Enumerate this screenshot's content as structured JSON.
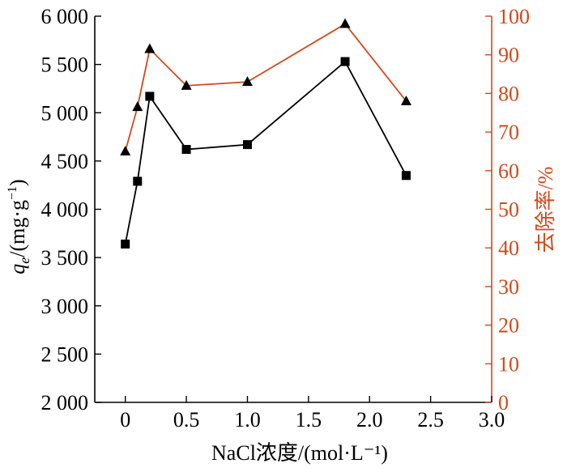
{
  "chart_data": {
    "type": "line",
    "xlabel": "NaCl浓度/(mol·L⁻¹)",
    "ylabel_left": {
      "main": "q",
      "sub": "e",
      "suffix": "/(mg·g",
      "sup": "−1",
      "close": ")"
    },
    "ylabel_right": "去除率/%",
    "x_ticks": [
      "0",
      "0.5",
      "1.0",
      "1.5",
      "2.0",
      "2.5",
      "3.0"
    ],
    "x_tick_values": [
      0,
      0.5,
      1.0,
      1.5,
      2.0,
      2.5,
      3.0
    ],
    "y_left_ticks": [
      "2 000",
      "2 500",
      "3 000",
      "3 500",
      "4 000",
      "4 500",
      "5 000",
      "5 500",
      "6 000"
    ],
    "y_left_tick_values": [
      2000,
      2500,
      3000,
      3500,
      4000,
      4500,
      5000,
      5500,
      6000
    ],
    "y_right_ticks": [
      "0",
      "10",
      "20",
      "30",
      "40",
      "50",
      "60",
      "70",
      "80",
      "90",
      "100"
    ],
    "y_right_tick_values": [
      0,
      10,
      20,
      30,
      40,
      50,
      60,
      70,
      80,
      90,
      100
    ],
    "xlim": [
      -0.25,
      3.0
    ],
    "ylim_left": [
      2000,
      6000
    ],
    "ylim_right": [
      0,
      100
    ],
    "grid": false,
    "series": [
      {
        "axis": "left",
        "marker": "square",
        "color": "#000000",
        "x": [
          0,
          0.1,
          0.2,
          0.5,
          1.0,
          1.8,
          2.3
        ],
        "y": [
          3640,
          4290,
          5170,
          4620,
          4670,
          5530,
          4350
        ]
      },
      {
        "axis": "right",
        "marker": "triangle",
        "color": "#d04a1b",
        "x": [
          0,
          0.1,
          0.2,
          0.5,
          1.0,
          1.8,
          2.3
        ],
        "y": [
          65,
          76.5,
          91.5,
          82,
          83,
          98,
          78
        ]
      }
    ],
    "colors": {
      "axis": "#000000",
      "right_axis": "#d04a1b"
    }
  }
}
